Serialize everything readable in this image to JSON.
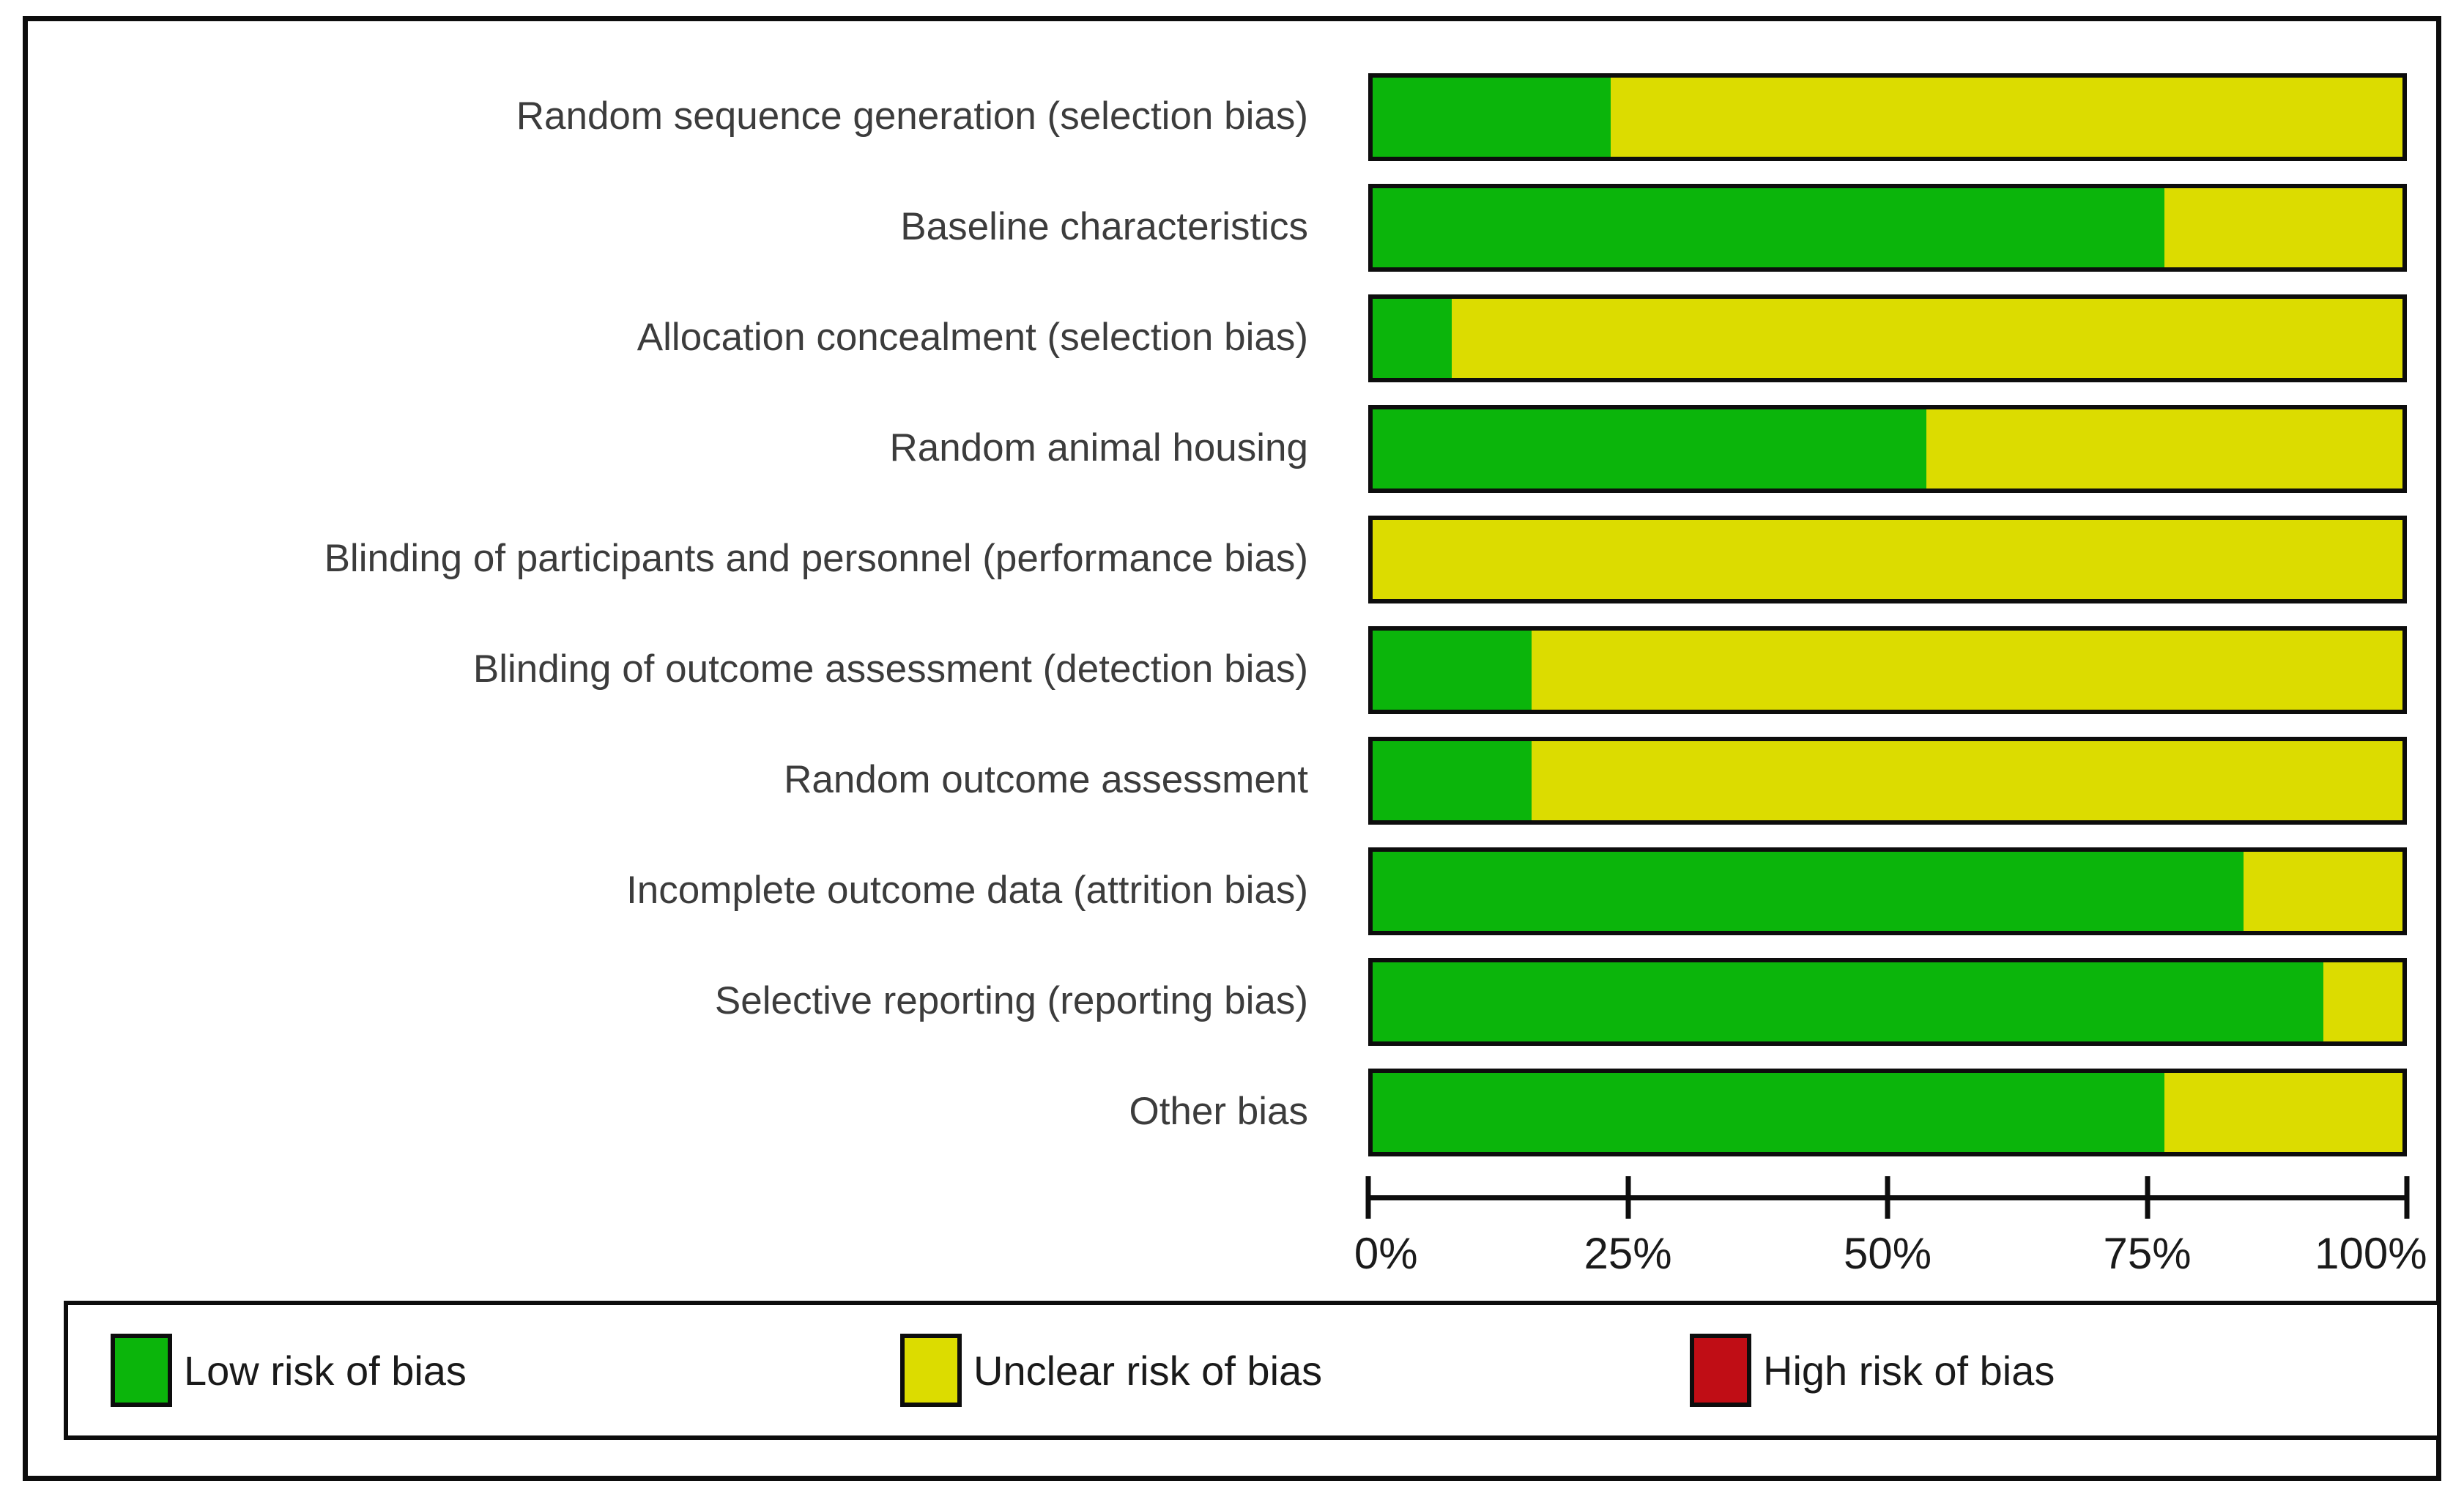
{
  "chart_data": {
    "type": "bar",
    "orientation": "horizontal",
    "stacked": true,
    "title": "",
    "xlabel": "",
    "ylabel": "",
    "xlim": [
      0,
      100
    ],
    "x_ticks": [
      "0%",
      "25%",
      "50%",
      "75%",
      "100%"
    ],
    "grid": false,
    "legend_position": "bottom",
    "categories": [
      "Random sequence generation (selection bias)",
      "Baseline characteristics",
      "Allocation concealment (selection bias)",
      "Random animal housing",
      "Blinding of participants and personnel (performance bias)",
      "Blinding of outcome assessment (detection bias)",
      "Random outcome assessment",
      "Incomplete outcome data (attrition bias)",
      "Selective reporting (reporting bias)",
      "Other bias"
    ],
    "series": [
      {
        "name": "Low risk of bias",
        "color": "#0bb50b",
        "values": [
          23.1,
          76.9,
          7.7,
          53.8,
          0,
          15.4,
          15.4,
          84.6,
          92.3,
          76.9
        ]
      },
      {
        "name": "Unclear risk of bias",
        "color": "#dcdc00",
        "values": [
          76.9,
          23.1,
          92.3,
          46.2,
          100,
          84.6,
          84.6,
          15.4,
          7.7,
          23.1
        ]
      },
      {
        "name": "High risk of bias",
        "color": "#c00d15",
        "values": [
          0,
          0,
          0,
          0,
          0,
          0,
          0,
          0,
          0,
          0
        ]
      }
    ]
  }
}
